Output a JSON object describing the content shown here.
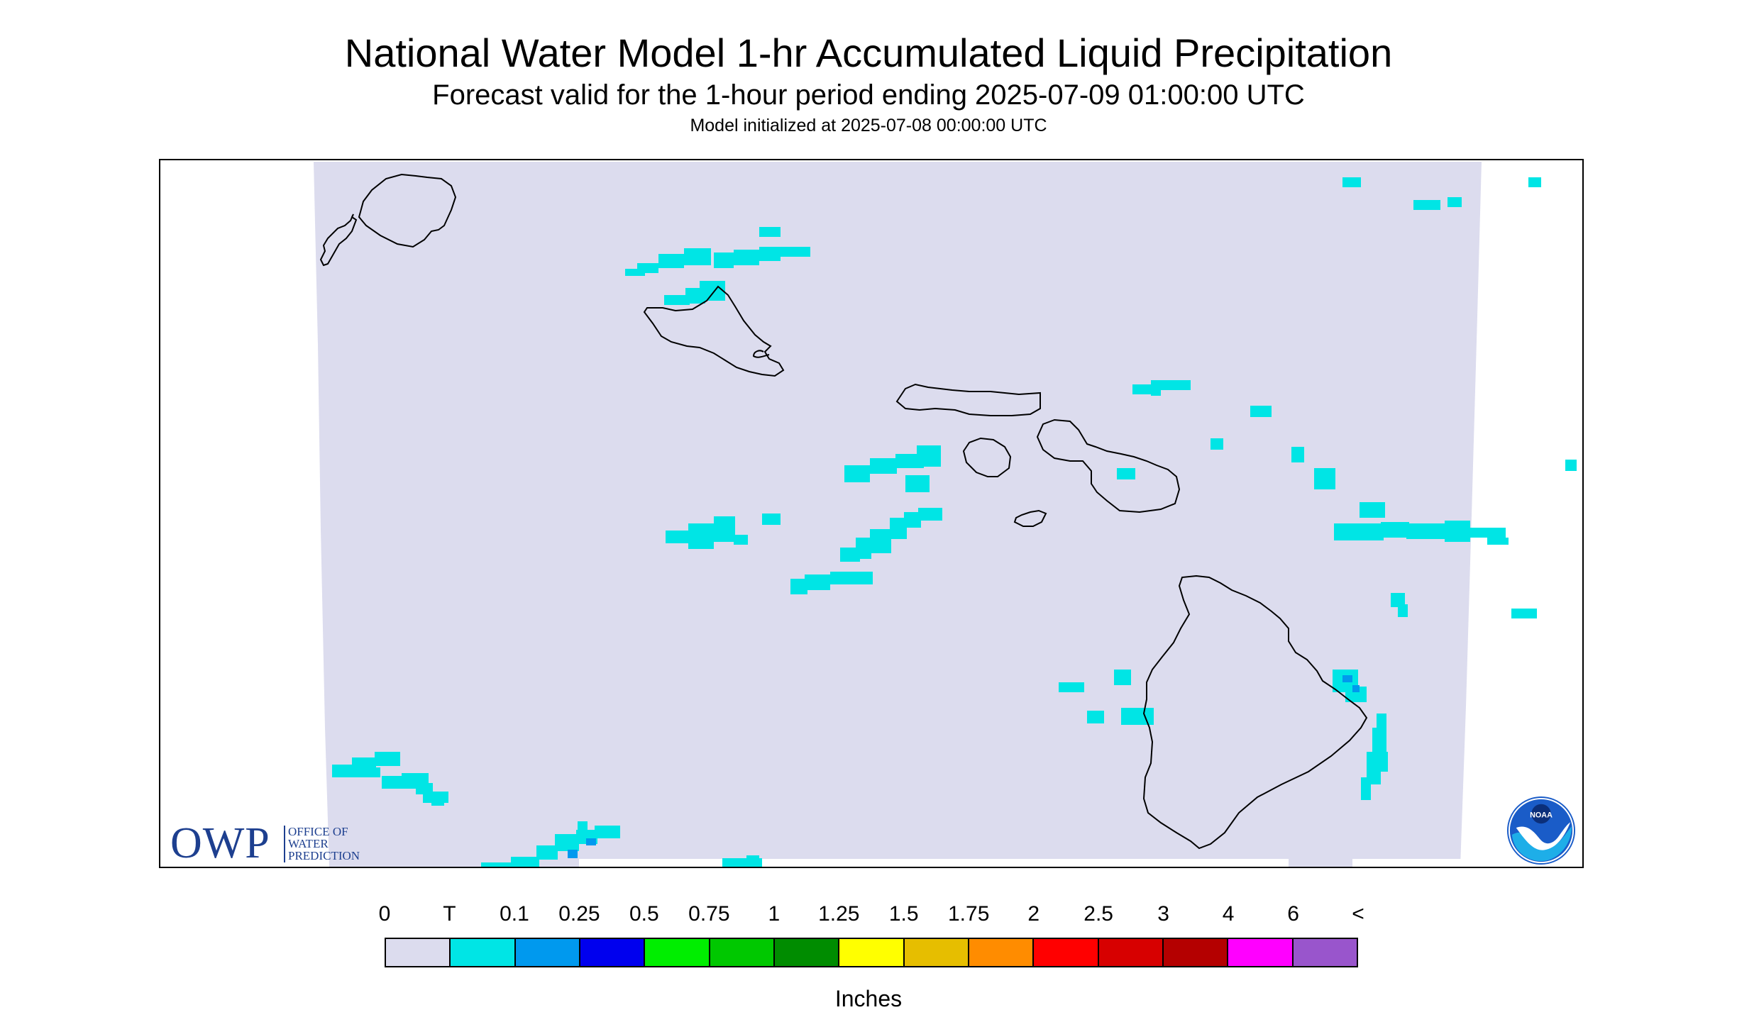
{
  "title": "National Water Model 1-hr Accumulated Liquid Precipitation",
  "subtitle": "Forecast valid for the 1-hour period ending 2025-07-09 01:00:00 UTC",
  "init_text": "Model initialized at 2025-07-08 00:00:00 UTC",
  "colors": {
    "background_field": "#dcdcee",
    "trace": "#00e5e5",
    "coastline": "#000000",
    "owp_blue": "#1d3f8f",
    "noaa_blue": "#1a5cc8"
  },
  "owp": {
    "letters": "OWP",
    "line1": "OFFICE OF",
    "line2": "WATER",
    "line3": "PREDICTION"
  },
  "noaa_logo_text": "NOAA",
  "legend": {
    "units": "Inches",
    "labels": [
      "0",
      "T",
      "0.1",
      "0.25",
      "0.5",
      "0.75",
      "1",
      "1.25",
      "1.5",
      "1.75",
      "2",
      "2.5",
      "3",
      "4",
      "6",
      "<"
    ],
    "colors": [
      "#dcdcee",
      "#00e5e5",
      "#0099ee",
      "#0000ee",
      "#00ee00",
      "#00c800",
      "#008c00",
      "#ffff00",
      "#e6be00",
      "#ff8c00",
      "#ff0000",
      "#d70000",
      "#b40000",
      "#ff00ff",
      "#9955cc"
    ]
  },
  "map": {
    "icons": [
      "owp-logo",
      "noaa-logo"
    ]
  }
}
